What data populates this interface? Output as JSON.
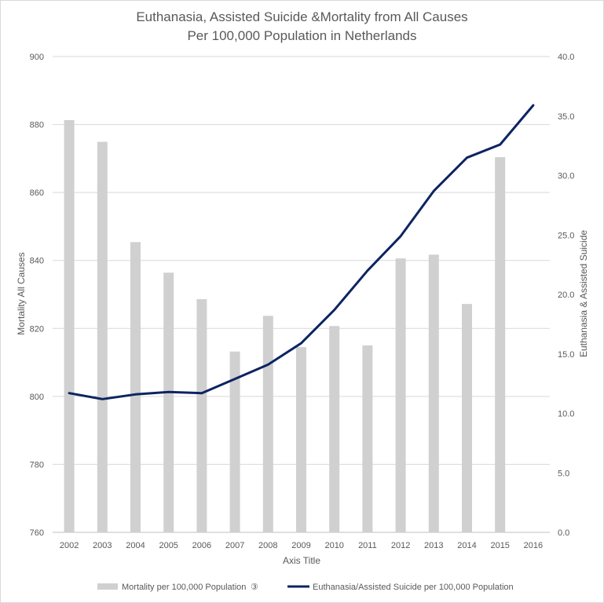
{
  "chart_data": {
    "type": "bar",
    "title": "Euthanasia, Assisted Suicide &Mortality from All Causes",
    "subtitle": "Per 100,000 Population in Netherlands",
    "xlabel": "Axis Title",
    "ylabel": "Mortality All Causes",
    "y2label": "Euthanasia & Assisted Suicide",
    "categories": [
      "2002",
      "2003",
      "2004",
      "2005",
      "2006",
      "2007",
      "2008",
      "2009",
      "2010",
      "2011",
      "2012",
      "2013",
      "2014",
      "2015",
      "2016"
    ],
    "ylim": [
      760,
      900
    ],
    "y_ticks": [
      "760",
      "780",
      "800",
      "820",
      "840",
      "860",
      "880",
      "900"
    ],
    "y2lim": [
      0,
      40
    ],
    "y2_ticks": [
      "0.0",
      "5.0",
      "10.0",
      "15.0",
      "20.0",
      "25.0",
      "30.0",
      "35.0",
      "40.0"
    ],
    "grid": true,
    "legend_position": "bottom",
    "series": [
      {
        "name": "Mortality per 100,000 Population",
        "legend_marker": "③",
        "type": "bar",
        "axis": "left",
        "color": "#d0d0d0",
        "values": [
          881.3,
          874.9,
          845.4,
          836.4,
          828.6,
          813.2,
          823.7,
          814.5,
          820.7,
          815.0,
          840.6,
          841.7,
          827.2,
          870.4,
          null
        ]
      },
      {
        "name": "Euthanasia/Assisted Suicide per 100,000 Population",
        "type": "line",
        "axis": "right",
        "color": "#0c2461",
        "values": [
          11.7,
          11.2,
          11.6,
          11.8,
          11.7,
          12.9,
          14.1,
          15.9,
          18.7,
          22.0,
          24.9,
          28.7,
          31.5,
          32.6,
          35.9
        ]
      }
    ]
  }
}
